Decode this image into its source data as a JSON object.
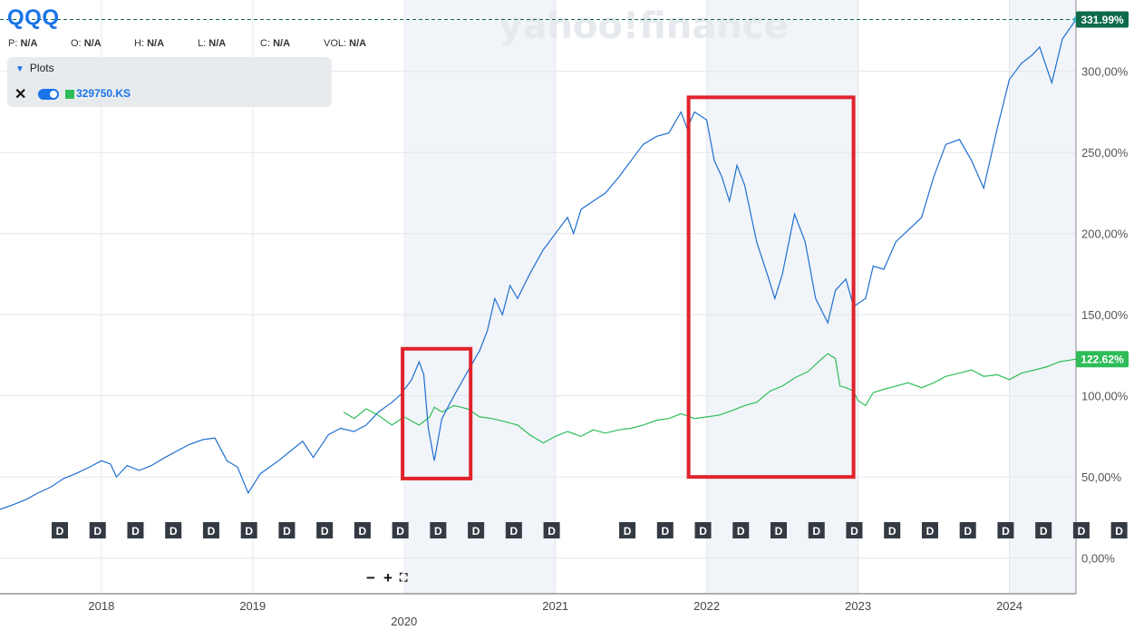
{
  "header": {
    "ticker": "QQQ",
    "ohlc": [
      {
        "key": "P:",
        "value": "N/A"
      },
      {
        "key": "O:",
        "value": "N/A"
      },
      {
        "key": "H:",
        "value": "N/A"
      },
      {
        "key": "L:",
        "value": "N/A"
      },
      {
        "key": "C:",
        "value": "N/A"
      },
      {
        "key": "VOL:",
        "value": "N/A"
      }
    ]
  },
  "plots_panel": {
    "title": "Plots",
    "series_label": "329750.KS"
  },
  "watermark": "yahoo!finance",
  "zoom_controls": {
    "minus": "−",
    "plus": "+",
    "expand": "⛶"
  },
  "colors": {
    "qqq": "#1f6fd0",
    "kospi": "#2ebd59",
    "qqq_label_bg": "#0d6b4a",
    "kospi_label_bg": "#2ebd59",
    "highlight_box": "#e0232c",
    "shade": "#f1f4f8"
  },
  "chart_data": {
    "type": "line",
    "x_unit": "year",
    "xlim": [
      2017.33,
      2024.44
    ],
    "ylim": [
      -22,
      344
    ],
    "y_ticks": [
      0,
      50,
      100,
      150,
      200,
      250,
      300
    ],
    "y_tick_labels": [
      "0,00%",
      "50,00%",
      "100,00%",
      "150,00%",
      "200,00%",
      "250,00%",
      "300,00%"
    ],
    "x_ticks": [
      {
        "x": 2018,
        "label": "2018"
      },
      {
        "x": 2019,
        "label": "2019"
      },
      {
        "x": 2020,
        "label": "2020"
      },
      {
        "x": 2021,
        "label": "2021"
      },
      {
        "x": 2022,
        "label": "2022"
      },
      {
        "x": 2023,
        "label": "2023"
      },
      {
        "x": 2024,
        "label": "2024"
      }
    ],
    "shaded_ranges": [
      [
        2020,
        2021
      ],
      [
        2022,
        2023
      ],
      [
        2024,
        2024.44
      ]
    ],
    "grid": true,
    "series": [
      {
        "name": "QQQ",
        "end_label": "331.99%",
        "points": [
          [
            2017.33,
            30
          ],
          [
            2017.42,
            33
          ],
          [
            2017.5,
            36
          ],
          [
            2017.58,
            40
          ],
          [
            2017.67,
            44
          ],
          [
            2017.75,
            49
          ],
          [
            2017.83,
            52
          ],
          [
            2017.92,
            56
          ],
          [
            2018.0,
            60
          ],
          [
            2018.06,
            58
          ],
          [
            2018.1,
            50
          ],
          [
            2018.17,
            57
          ],
          [
            2018.25,
            54
          ],
          [
            2018.33,
            57
          ],
          [
            2018.42,
            62
          ],
          [
            2018.5,
            66
          ],
          [
            2018.58,
            70
          ],
          [
            2018.67,
            73
          ],
          [
            2018.75,
            74
          ],
          [
            2018.83,
            60
          ],
          [
            2018.9,
            56
          ],
          [
            2018.97,
            40
          ],
          [
            2019.05,
            52
          ],
          [
            2019.17,
            60
          ],
          [
            2019.25,
            66
          ],
          [
            2019.33,
            72
          ],
          [
            2019.4,
            62
          ],
          [
            2019.5,
            76
          ],
          [
            2019.58,
            80
          ],
          [
            2019.67,
            78
          ],
          [
            2019.75,
            82
          ],
          [
            2019.83,
            90
          ],
          [
            2019.92,
            96
          ],
          [
            2019.98,
            101
          ],
          [
            2020.05,
            110
          ],
          [
            2020.1,
            121
          ],
          [
            2020.13,
            113
          ],
          [
            2020.16,
            80
          ],
          [
            2020.2,
            60
          ],
          [
            2020.25,
            86
          ],
          [
            2020.33,
            100
          ],
          [
            2020.42,
            115
          ],
          [
            2020.5,
            128
          ],
          [
            2020.55,
            140
          ],
          [
            2020.6,
            160
          ],
          [
            2020.65,
            150
          ],
          [
            2020.7,
            168
          ],
          [
            2020.75,
            160
          ],
          [
            2020.83,
            175
          ],
          [
            2020.92,
            190
          ],
          [
            2021.0,
            200
          ],
          [
            2021.08,
            210
          ],
          [
            2021.12,
            200
          ],
          [
            2021.17,
            215
          ],
          [
            2021.25,
            220
          ],
          [
            2021.33,
            225
          ],
          [
            2021.42,
            235
          ],
          [
            2021.5,
            245
          ],
          [
            2021.58,
            255
          ],
          [
            2021.67,
            260
          ],
          [
            2021.75,
            262
          ],
          [
            2021.83,
            275
          ],
          [
            2021.87,
            265
          ],
          [
            2021.92,
            275
          ],
          [
            2022.0,
            270
          ],
          [
            2022.05,
            245
          ],
          [
            2022.1,
            235
          ],
          [
            2022.15,
            220
          ],
          [
            2022.2,
            242
          ],
          [
            2022.25,
            230
          ],
          [
            2022.33,
            195
          ],
          [
            2022.4,
            175
          ],
          [
            2022.45,
            160
          ],
          [
            2022.5,
            175
          ],
          [
            2022.58,
            212
          ],
          [
            2022.65,
            195
          ],
          [
            2022.72,
            160
          ],
          [
            2022.8,
            145
          ],
          [
            2022.85,
            165
          ],
          [
            2022.92,
            172
          ],
          [
            2022.97,
            155
          ],
          [
            2023.05,
            160
          ],
          [
            2023.1,
            180
          ],
          [
            2023.17,
            178
          ],
          [
            2023.25,
            195
          ],
          [
            2023.33,
            202
          ],
          [
            2023.42,
            210
          ],
          [
            2023.5,
            235
          ],
          [
            2023.58,
            255
          ],
          [
            2023.67,
            258
          ],
          [
            2023.75,
            245
          ],
          [
            2023.83,
            228
          ],
          [
            2023.92,
            265
          ],
          [
            2024.0,
            295
          ],
          [
            2024.08,
            305
          ],
          [
            2024.15,
            310
          ],
          [
            2024.2,
            315
          ],
          [
            2024.28,
            293
          ],
          [
            2024.35,
            320
          ],
          [
            2024.44,
            332
          ]
        ]
      },
      {
        "name": "329750.KS",
        "end_label": "122.62%",
        "points": [
          [
            2019.6,
            90
          ],
          [
            2019.67,
            86
          ],
          [
            2019.75,
            92
          ],
          [
            2019.83,
            88
          ],
          [
            2019.92,
            82
          ],
          [
            2020.0,
            87
          ],
          [
            2020.1,
            82
          ],
          [
            2020.17,
            87
          ],
          [
            2020.2,
            93
          ],
          [
            2020.25,
            90
          ],
          [
            2020.33,
            94
          ],
          [
            2020.42,
            92
          ],
          [
            2020.5,
            87
          ],
          [
            2020.58,
            86
          ],
          [
            2020.67,
            84
          ],
          [
            2020.75,
            82
          ],
          [
            2020.83,
            76
          ],
          [
            2020.92,
            71
          ],
          [
            2021.0,
            75
          ],
          [
            2021.08,
            78
          ],
          [
            2021.17,
            75
          ],
          [
            2021.25,
            79
          ],
          [
            2021.33,
            77
          ],
          [
            2021.42,
            79
          ],
          [
            2021.5,
            80
          ],
          [
            2021.58,
            82
          ],
          [
            2021.67,
            85
          ],
          [
            2021.75,
            86
          ],
          [
            2021.83,
            89
          ],
          [
            2021.92,
            86
          ],
          [
            2022.0,
            87
          ],
          [
            2022.08,
            88
          ],
          [
            2022.17,
            91
          ],
          [
            2022.25,
            94
          ],
          [
            2022.33,
            96
          ],
          [
            2022.42,
            103
          ],
          [
            2022.5,
            106
          ],
          [
            2022.58,
            111
          ],
          [
            2022.67,
            115
          ],
          [
            2022.75,
            122
          ],
          [
            2022.8,
            126
          ],
          [
            2022.85,
            123
          ],
          [
            2022.88,
            106
          ],
          [
            2022.92,
            105
          ],
          [
            2022.97,
            103
          ],
          [
            2023.0,
            97
          ],
          [
            2023.05,
            94
          ],
          [
            2023.1,
            102
          ],
          [
            2023.17,
            104
          ],
          [
            2023.25,
            106
          ],
          [
            2023.33,
            108
          ],
          [
            2023.42,
            105
          ],
          [
            2023.5,
            108
          ],
          [
            2023.58,
            112
          ],
          [
            2023.67,
            114
          ],
          [
            2023.75,
            116
          ],
          [
            2023.83,
            112
          ],
          [
            2023.92,
            113
          ],
          [
            2024.0,
            110
          ],
          [
            2024.08,
            114
          ],
          [
            2024.17,
            116
          ],
          [
            2024.25,
            118
          ],
          [
            2024.33,
            121
          ],
          [
            2024.44,
            122.6
          ]
        ]
      }
    ],
    "annotation_boxes": [
      {
        "x": [
          2019.99,
          2020.44
        ],
        "y": [
          49,
          129
        ]
      },
      {
        "x": [
          2021.88,
          2022.97
        ],
        "y": [
          50,
          284
        ]
      }
    ],
    "event_markers": {
      "label": "D",
      "x": [
        2017.33,
        2017.58,
        2017.83,
        2018.08,
        2018.33,
        2018.58,
        2018.83,
        2019.08,
        2019.33,
        2019.58,
        2019.83,
        2020.08,
        2020.33,
        2020.58,
        2021.08,
        2021.33,
        2021.58,
        2021.83,
        2022.08,
        2022.33,
        2022.58,
        2022.83,
        2023.08,
        2023.33,
        2023.58,
        2023.83,
        2024.08,
        2024.33
      ]
    }
  }
}
